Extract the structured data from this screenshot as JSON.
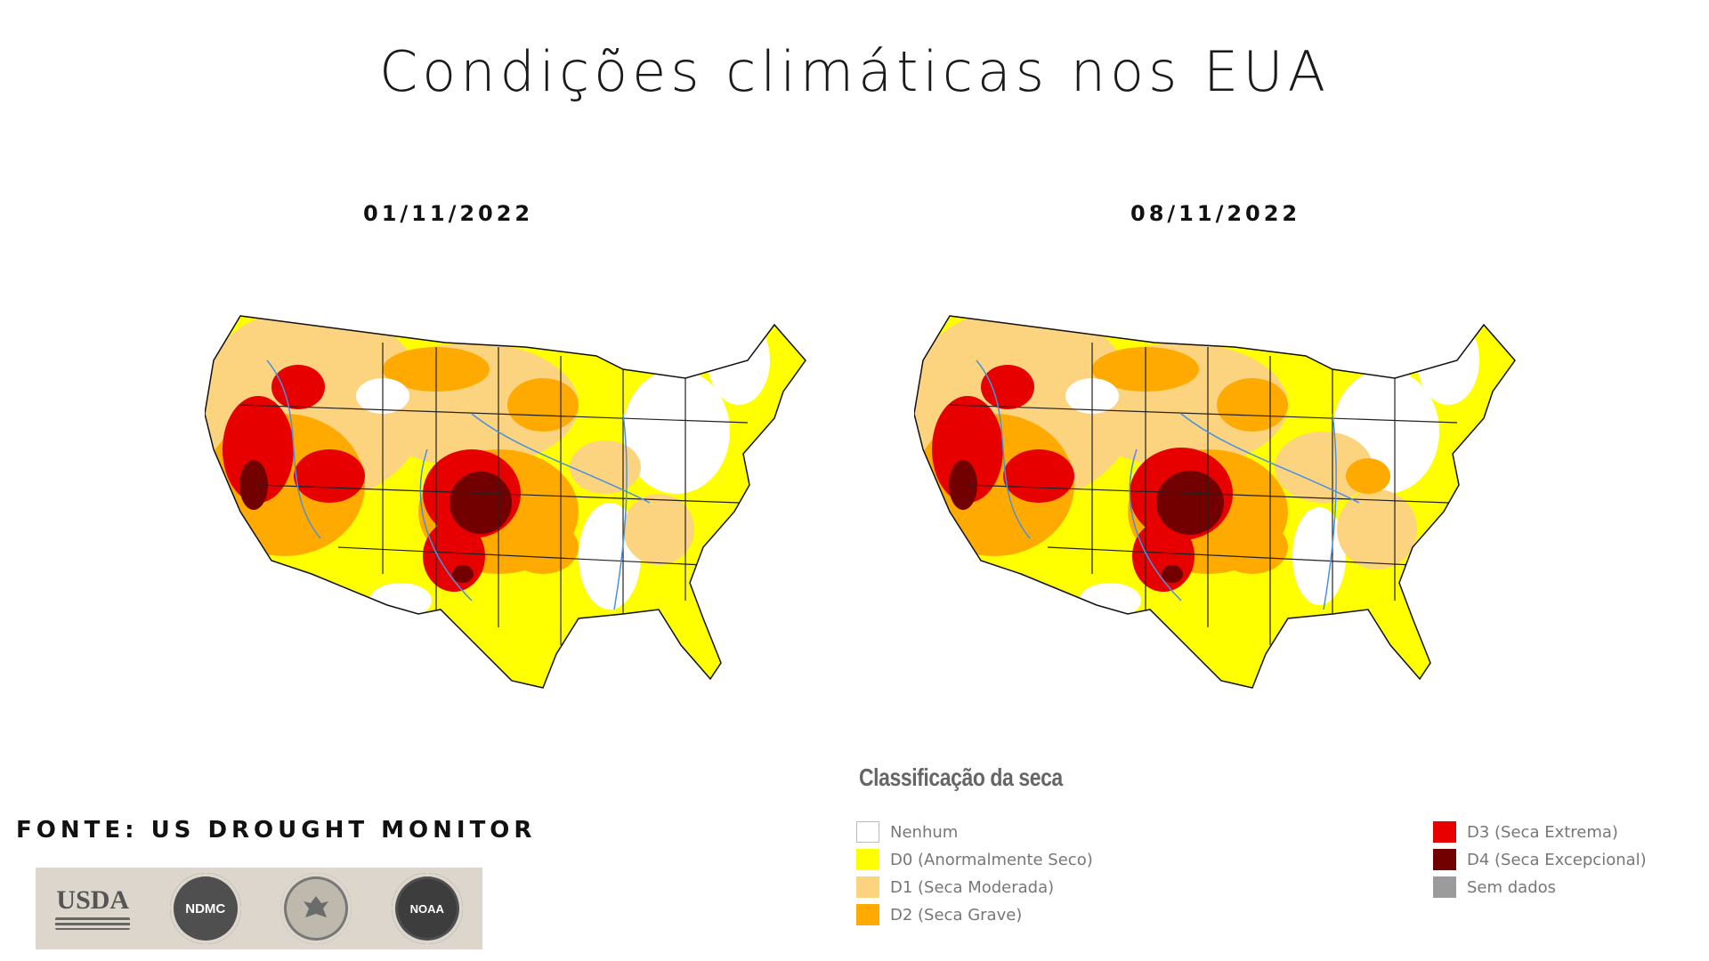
{
  "title": "Condições climáticas nos EUA",
  "maps": [
    {
      "date": "01/11/2022"
    },
    {
      "date": "08/11/2022"
    }
  ],
  "source": "FONTE: US DROUGHT MONITOR",
  "logos": [
    {
      "name": "usda-logo",
      "text": "USDA"
    },
    {
      "name": "ndmc-logo",
      "text": "NDMC"
    },
    {
      "name": "commerce-seal-logo",
      "text": ""
    },
    {
      "name": "noaa-logo",
      "text": "NOAA"
    }
  ],
  "legend": {
    "title": "Classificação da seca",
    "items": [
      {
        "label": "Nenhum",
        "color": "#ffffff"
      },
      {
        "label": "D0 (Anormalmente Seco)",
        "color": "#ffff00"
      },
      {
        "label": "D1 (Seca Moderada)",
        "color": "#fcd37f"
      },
      {
        "label": "D2 (Seca Grave)",
        "color": "#ffaa00"
      },
      {
        "label": "D3 (Seca Extrema)",
        "color": "#e60000"
      },
      {
        "label": "D4 (Seca Excepcional)",
        "color": "#730000"
      },
      {
        "label": "Sem dados",
        "color": "#9b9b9b"
      }
    ]
  }
}
